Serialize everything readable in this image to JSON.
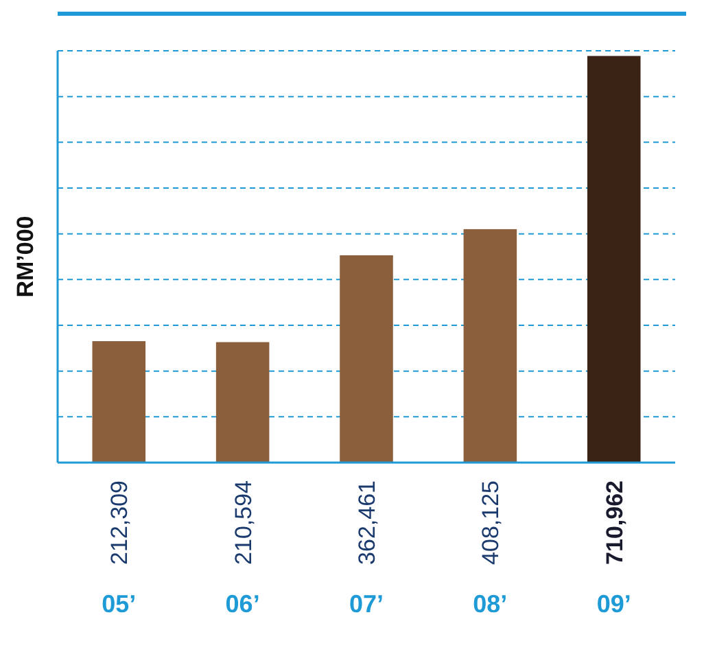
{
  "chart_data": {
    "type": "bar",
    "ylabel": "RM’000",
    "categories": [
      "05’",
      "06’",
      "07’",
      "08’",
      "09’"
    ],
    "values": [
      212309,
      210594,
      362461,
      408125,
      710962
    ],
    "colors": [
      "#8b5e3c",
      "#8b5e3c",
      "#8b5e3c",
      "#8b5e3c",
      "#3a2215"
    ],
    "value_labels": [
      "212,309",
      "210,594",
      "362,461",
      "408,125",
      "710,962"
    ],
    "ylim": [
      0,
      720000
    ],
    "yticks": [
      {
        "value": 80000,
        "label": null
      },
      {
        "value": 160000,
        "label": null
      },
      {
        "value": 240000,
        "label": null
      },
      {
        "value": 320000,
        "label": null
      },
      {
        "value": 400000,
        "label": null
      },
      {
        "value": 480000,
        "label": null
      },
      {
        "value": 560000,
        "label": null
      },
      {
        "value": 640000,
        "label": null
      },
      {
        "value": 720000,
        "label": null
      }
    ],
    "tick_labels": "x",
    "grid": "y"
  }
}
